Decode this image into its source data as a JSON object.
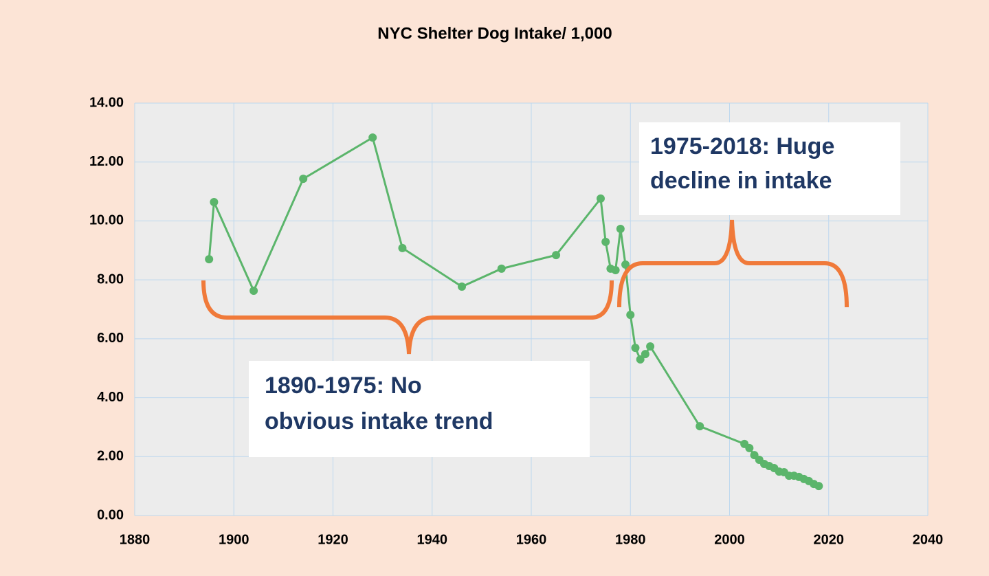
{
  "chart_data": {
    "type": "line",
    "title": "NYC Shelter Dog Intake/ 1,000",
    "x": [
      1895,
      1896,
      1904,
      1914,
      1928,
      1934,
      1946,
      1954,
      1965,
      1974,
      1975,
      1976,
      1977,
      1978,
      1979,
      1980,
      1981,
      1982,
      1983,
      1984,
      1994,
      2003,
      2004,
      2005,
      2006,
      2007,
      2008,
      2009,
      2010,
      2011,
      2012,
      2013,
      2014,
      2015,
      2016,
      2017,
      2018
    ],
    "values": [
      8.7,
      10.64,
      7.63,
      11.43,
      12.83,
      9.08,
      7.77,
      8.38,
      8.84,
      10.76,
      9.29,
      8.38,
      8.33,
      9.73,
      8.52,
      6.81,
      5.69,
      5.3,
      5.48,
      5.74,
      3.03,
      2.43,
      2.29,
      2.05,
      1.89,
      1.75,
      1.68,
      1.61,
      1.49,
      1.47,
      1.35,
      1.35,
      1.31,
      1.24,
      1.17,
      1.07,
      1.0
    ],
    "color": "#5bb56b",
    "xlim": [
      1880,
      2040
    ],
    "xticks": [
      1880,
      1900,
      1920,
      1940,
      1960,
      1980,
      2000,
      2020,
      2040
    ],
    "ylim": [
      0,
      14
    ],
    "yticks": [
      {
        "value": 0,
        "label": "0.00"
      },
      {
        "value": 2,
        "label": "2.00"
      },
      {
        "value": 4,
        "label": "4.00"
      },
      {
        "value": 6,
        "label": "6.00"
      },
      {
        "value": 8,
        "label": "8.00"
      },
      {
        "value": 10,
        "label": "10.00"
      },
      {
        "value": 12,
        "label": "12.00"
      },
      {
        "value": 14,
        "label": "14.00"
      }
    ],
    "grid": true,
    "annotations": [
      {
        "lines": [
          "1975-2018: Huge",
          "decline in intake"
        ]
      },
      {
        "lines": [
          "1890-1975: No",
          "obvious intake trend"
        ]
      }
    ]
  }
}
